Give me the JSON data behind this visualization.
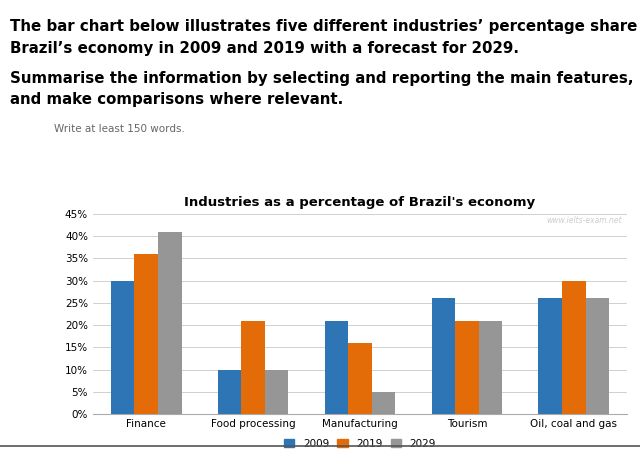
{
  "title": "Industries as a percentage of Brazil's economy",
  "watermark": "www.ielts-exam.net",
  "categories": [
    "Finance",
    "Food processing",
    "Manufacturing",
    "Tourism",
    "Oil, coal and gas"
  ],
  "years": [
    "2009",
    "2019",
    "2029"
  ],
  "values": {
    "2009": [
      30,
      10,
      21,
      26,
      26
    ],
    "2019": [
      36,
      21,
      16,
      21,
      30
    ],
    "2029": [
      41,
      10,
      5,
      21,
      26
    ]
  },
  "colors": {
    "2009": "#2E75B6",
    "2019": "#E36C09",
    "2029": "#969696"
  },
  "ylim": [
    0,
    45
  ],
  "yticks": [
    0,
    5,
    10,
    15,
    20,
    25,
    30,
    35,
    40,
    45
  ],
  "yticklabels": [
    "0%",
    "5%",
    "10%",
    "15%",
    "20%",
    "25%",
    "30%",
    "35%",
    "40%",
    "45%"
  ],
  "header_line1": "The bar chart below illustrates five different industries’ percentage share of",
  "header_line2": "Brazil’s economy in 2009 and 2019 with a forecast for 2029.",
  "subheader_line1": "Summarise the information by selecting and reporting the main features,",
  "subheader_line2": "and make comparisons where relevant.",
  "write_note": "Write at least 150 words.",
  "background_color": "#ffffff",
  "bar_width": 0.22
}
